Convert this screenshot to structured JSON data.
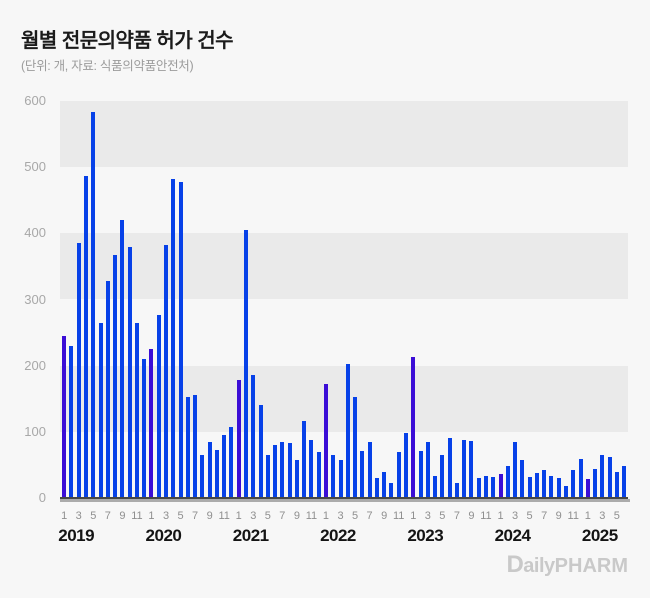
{
  "header": {
    "title": "월별 전문의약품 허가 건수",
    "subtitle": "(단위: 개, 자료: 식품의약품안전처)"
  },
  "logo": {
    "d": "D",
    "aily": "aily",
    "pharm": "PHARM"
  },
  "chart_data": {
    "type": "bar",
    "title": "월별 전문의약품 허가 건수",
    "unit_source_note": "(단위: 개, 자료: 식품의약품안전처)",
    "ylabel": "",
    "xlabel": "",
    "ylim": [
      0,
      600
    ],
    "ytick_labels": [
      "0",
      "100",
      "200",
      "300",
      "400",
      "500",
      "600"
    ],
    "xtick_month_labels": [
      "1",
      "3",
      "5",
      "7",
      "9",
      "11"
    ],
    "grid": "alternating horizontal bands shaded on 100-200, 300-400, 500-600",
    "legend": "none",
    "colors": {
      "bar_blue": "#0741E8",
      "bar_january_purple": "#3B0DD6",
      "band_gray": "#eaeaea",
      "background": "#f7f7f7"
    },
    "series": [
      {
        "year": "2019",
        "values": [
          245,
          230,
          385,
          487,
          583,
          265,
          328,
          368,
          420,
          380,
          265,
          210
        ]
      },
      {
        "year": "2020",
        "values": [
          225,
          277,
          383,
          482,
          478,
          152,
          156,
          65,
          85,
          72,
          95,
          107
        ]
      },
      {
        "year": "2021",
        "values": [
          178,
          405,
          186,
          140,
          65,
          80,
          85,
          83,
          58,
          117,
          87,
          70
        ]
      },
      {
        "year": "2022",
        "values": [
          172,
          65,
          57,
          203,
          152,
          71,
          84,
          30,
          39,
          22,
          70,
          98
        ]
      },
      {
        "year": "2023",
        "values": [
          213,
          71,
          84,
          33,
          65,
          91,
          23,
          88,
          86,
          30,
          34,
          32
        ]
      },
      {
        "year": "2024",
        "values": [
          36,
          48,
          85,
          57,
          31,
          38,
          43,
          33,
          30,
          18,
          42,
          59
        ]
      },
      {
        "year": "2025",
        "values": [
          29,
          44,
          65,
          62,
          40,
          49
        ]
      }
    ]
  }
}
